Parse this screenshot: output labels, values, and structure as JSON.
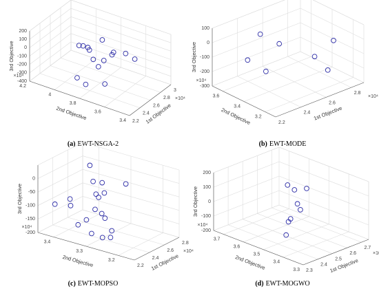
{
  "chart_data": [
    {
      "type": "scatter3d",
      "caption_label": "(a)",
      "caption": "EWT-NSGA-2",
      "xlabel": "1st Objective",
      "ylabel": "2nd Objective",
      "zlabel": "3rd Objective",
      "x_exponent": "×10⁴",
      "y_exponent": "×10⁴",
      "color": "#2a2aa6",
      "grid": true,
      "xlim": [
        22000,
        30000
      ],
      "ylim": [
        34000,
        42000
      ],
      "zlim": [
        -400,
        200
      ],
      "xticks": [
        {
          "value": 22000,
          "label": "2.2"
        },
        {
          "value": 24000,
          "label": "2.4"
        },
        {
          "value": 26000,
          "label": "2.6"
        },
        {
          "value": 28000,
          "label": "2.8"
        },
        {
          "value": 30000,
          "label": "3"
        }
      ],
      "yticks": [
        {
          "value": 34000,
          "label": "3.4"
        },
        {
          "value": 36000,
          "label": "3.6"
        },
        {
          "value": 38000,
          "label": "3.8"
        },
        {
          "value": 40000,
          "label": "4"
        },
        {
          "value": 42000,
          "label": "4.2"
        }
      ],
      "zticks": [
        200,
        100,
        0,
        -100,
        -200,
        -300,
        -400
      ],
      "x": [
        26000,
        24400,
        25200,
        23600,
        26800,
        27600,
        24400,
        28400,
        29200,
        26000,
        23600,
        26800,
        25200,
        22800,
        23600
      ],
      "y": [
        37840,
        39040,
        39040,
        38000,
        39200,
        37600,
        36400,
        36960,
        36560,
        38560,
        36720,
        38480,
        39520,
        37840,
        36640
      ],
      "z": [
        122,
        68,
        26,
        134,
        -106,
        -88,
        92,
        -106,
        -190,
        -148,
        44,
        -268,
        -380,
        -262,
        -232
      ]
    },
    {
      "type": "scatter3d",
      "caption_label": "(b)",
      "caption": "EWT-MODE",
      "xlabel": "1st Objective",
      "ylabel": "2nd Objective",
      "zlabel": "3rd Objective",
      "x_exponent": "×10⁴",
      "y_exponent": "×10⁴",
      "color": "#2a2aa6",
      "grid": true,
      "xlim": [
        22000,
        29000
      ],
      "ylim": [
        31000,
        37000
      ],
      "zlim": [
        -300,
        100
      ],
      "xticks": [
        {
          "value": 22000,
          "label": "2.2"
        },
        {
          "value": 24000,
          "label": "2.4"
        },
        {
          "value": 26000,
          "label": "2.6"
        },
        {
          "value": 28000,
          "label": "2.8"
        }
      ],
      "yticks": [
        {
          "value": 32000,
          "label": "3.2"
        },
        {
          "value": 34000,
          "label": "3.4"
        },
        {
          "value": 36000,
          "label": "3.6"
        }
      ],
      "zticks": [
        100,
        0,
        -100,
        -200,
        -300
      ],
      "x": [
        24100,
        24800,
        27600,
        23400,
        26200,
        24800,
        27600
      ],
      "y": [
        34960,
        34000,
        32200,
        35320,
        32320,
        35260,
        32740
      ],
      "z": [
        60,
        4,
        -4,
        -108,
        -72,
        -232,
        -228
      ]
    },
    {
      "type": "scatter3d",
      "caption_label": "(c)",
      "caption": "EWT-MOPSO",
      "xlabel": "1st Objective",
      "ylabel": "2nd Objective",
      "zlabel": "3rd Objective",
      "x_exponent": "×10⁴",
      "y_exponent": "×10⁴",
      "color": "#2a2aa6",
      "grid": true,
      "xlim": [
        22000,
        28000
      ],
      "ylim": [
        31500,
        34500
      ],
      "zlim": [
        -200,
        50
      ],
      "xticks": [
        {
          "value": 22000,
          "label": "2.2"
        },
        {
          "value": 24000,
          "label": "2.4"
        },
        {
          "value": 26000,
          "label": "2.6"
        },
        {
          "value": 28000,
          "label": "2.8"
        }
      ],
      "yticks": [
        {
          "value": 32000,
          "label": "3.2"
        },
        {
          "value": 33000,
          "label": "3.3"
        },
        {
          "value": 34000,
          "label": "3.4"
        }
      ],
      "zticks": [
        0,
        -50,
        -100,
        -150,
        -200
      ],
      "x": [
        25600,
        25000,
        24400,
        26800,
        25000,
        23800,
        25600,
        23200,
        22600,
        23800,
        23200,
        25000,
        23200,
        26200,
        22600,
        24400,
        22600,
        23800,
        23200
      ],
      "y": [
        33720,
        33480,
        33060,
        32880,
        33390,
        33030,
        33270,
        33780,
        34110,
        33900,
        33000,
        33210,
        33270,
        33390,
        33390,
        32760,
        32970,
        32910,
        32520
      ],
      "z": [
        25,
        -18,
        0,
        -32,
        -62,
        -45,
        -62,
        -68,
        -90,
        -105,
        -80,
        -128,
        -128,
        -168,
        -142,
        -168,
        -160,
        -190,
        -168
      ]
    },
    {
      "type": "scatter3d",
      "caption_label": "(d)",
      "caption": "EWT-MOGWO",
      "xlabel": "1st Objective",
      "ylabel": "2nd Objective",
      "zlabel": "3rd Objective",
      "x_exponent": "×10⁴",
      "y_exponent": "×10⁴",
      "color": "#2a2aa6",
      "grid": true,
      "xlim": [
        23000,
        27500
      ],
      "ylim": [
        33000,
        37500
      ],
      "zlim": [
        -200,
        200
      ],
      "xticks": [
        {
          "value": 23000,
          "label": "2.3"
        },
        {
          "value": 24000,
          "label": "2.4"
        },
        {
          "value": 25000,
          "label": "2.5"
        },
        {
          "value": 26000,
          "label": "2.6"
        },
        {
          "value": 27000,
          "label": "2.7"
        }
      ],
      "yticks": [
        {
          "value": 33000,
          "label": "3.3"
        },
        {
          "value": 34000,
          "label": "3.4"
        },
        {
          "value": 35000,
          "label": "3.5"
        },
        {
          "value": 36000,
          "label": "3.6"
        },
        {
          "value": 37000,
          "label": "3.7"
        }
      ],
      "zticks": [
        200,
        100,
        0,
        -100,
        -200
      ],
      "x": [
        25250,
        24800,
        25700,
        25250,
        25700,
        24350,
        25250,
        24350
      ],
      "y": [
        35430,
        34755,
        34800,
        34935,
        35115,
        34620,
        35385,
        34845
      ],
      "z": [
        136,
        156,
        128,
        32,
        -36,
        -20,
        -116,
        -144
      ]
    }
  ]
}
